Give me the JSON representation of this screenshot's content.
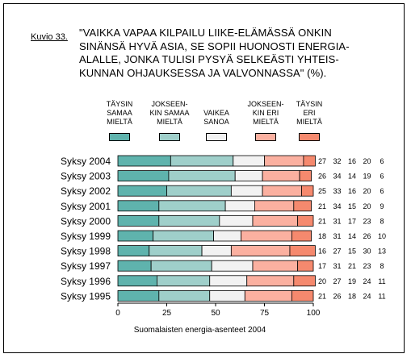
{
  "figure_label": "Kuvio 33.",
  "title_lines": [
    "\"VAIKKA VAPAA KILPAILU LIIKE-ELÄMÄSSÄ ONKIN",
    "SINÄNSÄ HYVÄ ASIA, SE SOPII HUONOSTI ENERGIA-",
    "ALALLE, JONKA TULISI PYSYÄ SELKEÄSTI YHTEIS-",
    "KUNNAN OHJAUKSESSA JA VALVONNASSA\" (%)."
  ],
  "source": "Suomalaisten energia-asenteet 2004",
  "colors": {
    "taysin_samaa": "#5fb3ad",
    "jokseenkin_samaa": "#9fcfca",
    "vaikea_sanoa": "#f2f2f2",
    "jokseenkin_eri": "#fbb0a0",
    "taysin_eri": "#f5896e"
  },
  "chart_data": {
    "type": "bar",
    "orientation": "horizontal",
    "stacked": true,
    "categories": [
      "Syksy 2004",
      "Syksy 2003",
      "Syksy 2002",
      "Syksy 2001",
      "Syksy 2000",
      "Syksy 1999",
      "Syksy 1998",
      "Syksy 1997",
      "Syksy 1996",
      "Syksy 1995"
    ],
    "series": [
      {
        "name_lines": [
          "TÄYSIN",
          "SAMAA",
          "MIELTÄ"
        ],
        "color_key": "taysin_samaa",
        "values": [
          27,
          26,
          25,
          21,
          21,
          18,
          16,
          17,
          20,
          21
        ]
      },
      {
        "name_lines": [
          "JOKSEEN-",
          "KIN SAMAA",
          "MIELTÄ"
        ],
        "color_key": "jokseenkin_samaa",
        "values": [
          32,
          34,
          33,
          34,
          31,
          31,
          27,
          31,
          27,
          26
        ]
      },
      {
        "name_lines": [
          "VAIKEA",
          "SANOA"
        ],
        "color_key": "vaikea_sanoa",
        "values": [
          16,
          14,
          16,
          15,
          17,
          14,
          15,
          21,
          19,
          18
        ]
      },
      {
        "name_lines": [
          "JOKSEEN-",
          "KIN ERI",
          "MIELTÄ"
        ],
        "color_key": "jokseenkin_eri",
        "values": [
          20,
          19,
          20,
          20,
          23,
          26,
          30,
          23,
          24,
          24
        ]
      },
      {
        "name_lines": [
          "TÄYSIN",
          "ERI",
          "MIELTÄ"
        ],
        "color_key": "taysin_eri",
        "values": [
          6,
          6,
          6,
          9,
          8,
          10,
          13,
          8,
          11,
          11
        ]
      }
    ],
    "xlim": [
      0,
      100
    ],
    "xticks": [
      0,
      25,
      50,
      75,
      100
    ],
    "grid": false,
    "legend_position": "top"
  }
}
